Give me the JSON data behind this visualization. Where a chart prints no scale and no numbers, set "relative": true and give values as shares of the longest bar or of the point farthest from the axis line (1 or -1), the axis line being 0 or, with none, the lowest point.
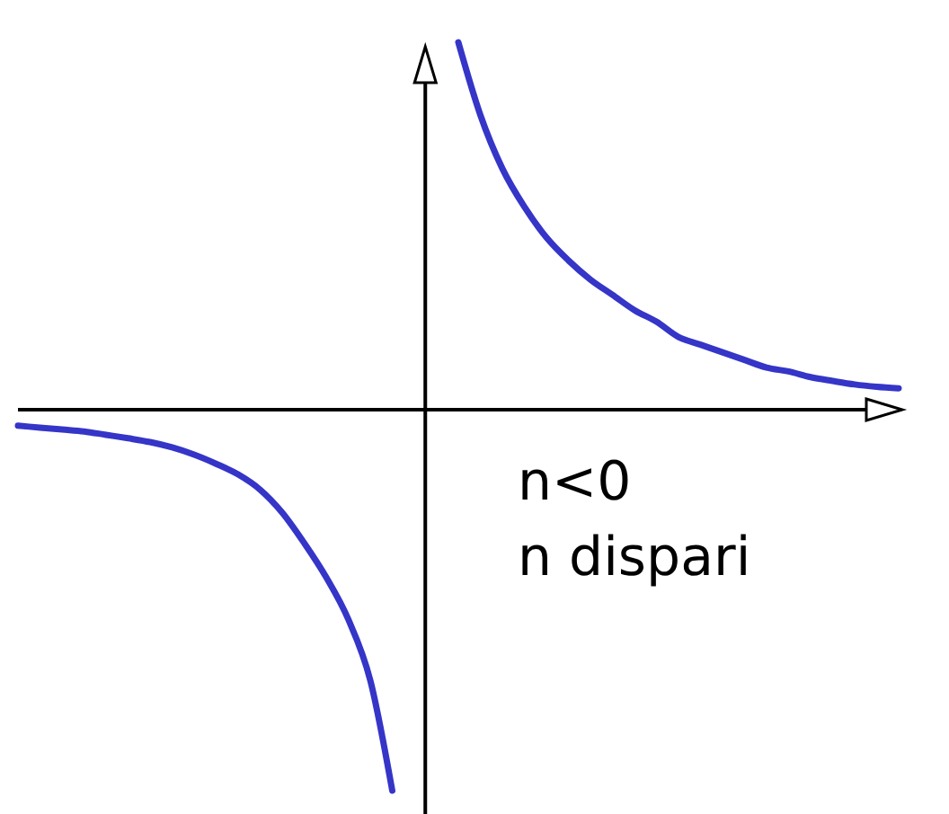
{
  "chart_data": {
    "type": "line",
    "relative": true,
    "categories": [
      null,
      null,
      null,
      null,
      null,
      null,
      null,
      null,
      null,
      null,
      null,
      null,
      null,
      null,
      null,
      null,
      null,
      null,
      null,
      null,
      null,
      null,
      null,
      null,
      null,
      null,
      null,
      null,
      null,
      null,
      null,
      null,
      null,
      null,
      null,
      null,
      null,
      null,
      null,
      null,
      null
    ],
    "series": [
      {
        "color": "#3535c8",
        "values": [
          -0.042,
          -0.047,
          -0.052,
          -0.057,
          -0.066,
          -0.075,
          -0.085,
          -0.099,
          -0.118,
          -0.142,
          -0.17,
          -0.21,
          -0.27,
          -0.35,
          -0.44,
          -0.55,
          -0.71,
          -1,
          null,
          null,
          null,
          null,
          null,
          null,
          null,
          null,
          null,
          null,
          null,
          null,
          null,
          null,
          null,
          null,
          null,
          null,
          null,
          null,
          null,
          null,
          null
        ]
      },
      {
        "color": "#3535c8",
        "values": [
          null,
          null,
          null,
          null,
          null,
          null,
          null,
          null,
          null,
          null,
          null,
          null,
          null,
          null,
          null,
          null,
          null,
          null,
          null,
          null,
          0.96,
          0.77,
          0.63,
          0.53,
          0.45,
          0.39,
          0.34,
          0.3,
          0.26,
          0.23,
          0.19,
          0.17,
          0.15,
          0.13,
          0.11,
          0.1,
          0.085,
          0.075,
          0.066,
          0.06,
          0.056
        ]
      }
    ],
    "annotations": [
      "n<0",
      "n dispari"
    ],
    "marker": "none",
    "line_style": "solid"
  }
}
